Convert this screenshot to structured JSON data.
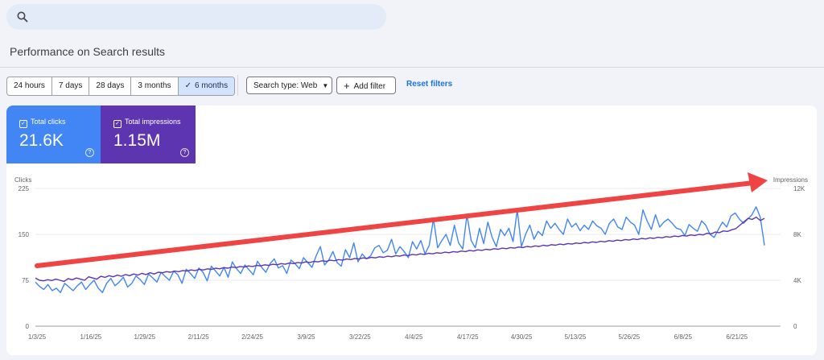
{
  "search": {
    "placeholder": ""
  },
  "page": {
    "title": "Performance on Search results"
  },
  "filters": {
    "date_ranges": [
      {
        "label": "24 hours",
        "active": false
      },
      {
        "label": "7 days",
        "active": false
      },
      {
        "label": "28 days",
        "active": false
      },
      {
        "label": "3 months",
        "active": false
      },
      {
        "label": "6 months",
        "active": true
      }
    ],
    "search_type_label": "Search type: Web",
    "add_filter_label": "Add filter",
    "reset_label": "Reset filters"
  },
  "metrics": {
    "clicks": {
      "label": "Total clicks",
      "value": "21.6K",
      "color": "#4285f4"
    },
    "impressions": {
      "label": "Total impressions",
      "value": "1.15M",
      "color": "#5e35b1"
    }
  },
  "chart_data": {
    "type": "line",
    "left_axis_label": "Clicks",
    "right_axis_label": "Impressions",
    "left_ticks": [
      "0",
      "75",
      "150",
      "225"
    ],
    "right_ticks": [
      "0",
      "4K",
      "8K",
      "12K"
    ],
    "ylim_left": [
      0,
      225
    ],
    "ylim_right": [
      0,
      12000
    ],
    "x_tick_labels": [
      "1/3/25",
      "1/16/25",
      "1/29/25",
      "2/11/25",
      "2/24/25",
      "3/9/25",
      "3/22/25",
      "4/4/25",
      "4/17/25",
      "4/30/25",
      "5/13/25",
      "5/26/25",
      "6/8/25",
      "6/21/25"
    ],
    "grid": true,
    "series": [
      {
        "name": "Clicks",
        "axis": "left",
        "color": "#4285f4",
        "values": [
          72,
          65,
          60,
          68,
          58,
          62,
          55,
          70,
          64,
          58,
          66,
          72,
          60,
          68,
          75,
          62,
          55,
          70,
          78,
          66,
          72,
          80,
          64,
          70,
          82,
          76,
          68,
          85,
          79,
          72,
          88,
          81,
          75,
          90,
          84,
          70,
          93,
          86,
          78,
          95,
          88,
          74,
          98,
          90,
          82,
          96,
          80,
          105,
          94,
          86,
          100,
          92,
          84,
          106,
          96,
          88,
          102,
          110,
          95,
          99,
          86,
          108,
          102,
          94,
          112,
          104,
          96,
          115,
          130,
          100,
          108,
          122,
          104,
          98,
          125,
          112,
          136,
          105,
          118,
          110,
          115,
          128,
          132,
          120,
          124,
          142,
          118,
          130,
          122,
          112,
          138,
          126,
          140,
          118,
          132,
          175,
          128,
          140,
          150,
          132,
          165,
          136,
          126,
          182,
          140,
          128,
          160,
          135,
          170,
          145,
          130,
          158,
          148,
          160,
          138,
          190,
          130,
          150,
          165,
          142,
          155,
          148,
          172,
          160,
          168,
          158,
          150,
          175,
          162,
          168,
          156,
          165,
          158,
          172,
          164,
          160,
          150,
          168,
          175,
          162,
          158,
          178,
          170,
          165,
          150,
          190,
          172,
          158,
          182,
          162,
          170,
          175,
          168,
          160,
          158,
          148,
          166,
          160,
          155,
          172,
          165,
          150,
          145,
          158,
          170,
          162,
          180,
          185,
          175,
          168,
          175,
          182,
          195,
          178,
          132
        ]
      },
      {
        "name": "Impressions",
        "axis": "right",
        "color": "#5e35b1",
        "values": [
          4200,
          4000,
          3950,
          4050,
          3980,
          4100,
          4000,
          3900,
          4150,
          4050,
          4200,
          4100,
          4000,
          4300,
          4200,
          4100,
          4350,
          4250,
          4400,
          4300,
          4450,
          4350,
          4500,
          4400,
          4550,
          4450,
          4600,
          4500,
          4650,
          4550,
          4700,
          4650,
          4750,
          4700,
          4800,
          4750,
          4850,
          4800,
          4900,
          4850,
          4950,
          4900,
          5000,
          4950,
          5050,
          5000,
          5100,
          5050,
          5150,
          5100,
          5200,
          5150,
          5250,
          5200,
          5300,
          5250,
          5350,
          5300,
          5400,
          5350,
          5450,
          5400,
          5500,
          5450,
          5550,
          5500,
          5600,
          5550,
          5650,
          5600,
          5700,
          5650,
          5750,
          5700,
          5800,
          5750,
          5850,
          5800,
          5900,
          5850,
          5950,
          5900,
          6000,
          5950,
          6050,
          6000,
          6100,
          6050,
          6150,
          6100,
          6200,
          6150,
          6250,
          6200,
          6300,
          6250,
          6350,
          6300,
          6400,
          6350,
          6450,
          6400,
          6500,
          6450,
          6550,
          6500,
          6600,
          6550,
          6650,
          6600,
          6700,
          6650,
          6750,
          6700,
          6800,
          6750,
          6850,
          6800,
          6900,
          6850,
          6950,
          6900,
          7000,
          6950,
          7050,
          7000,
          7100,
          7050,
          7150,
          7100,
          7200,
          7150,
          7250,
          7200,
          7300,
          7250,
          7350,
          7300,
          7400,
          7350,
          7450,
          7400,
          7500,
          7450,
          7550,
          7500,
          7600,
          7550,
          7650,
          7600,
          7700,
          7650,
          7750,
          7700,
          7800,
          7750,
          7850,
          7800,
          7900,
          7850,
          7950,
          7900,
          8000,
          7950,
          8100,
          8050,
          8200,
          8150,
          8300,
          8250,
          8400,
          8500,
          8800,
          9100,
          9400,
          9300,
          9500,
          9200,
          9400
        ]
      }
    ],
    "annotation": {
      "type": "trend-arrow",
      "color": "#ef4444"
    }
  }
}
